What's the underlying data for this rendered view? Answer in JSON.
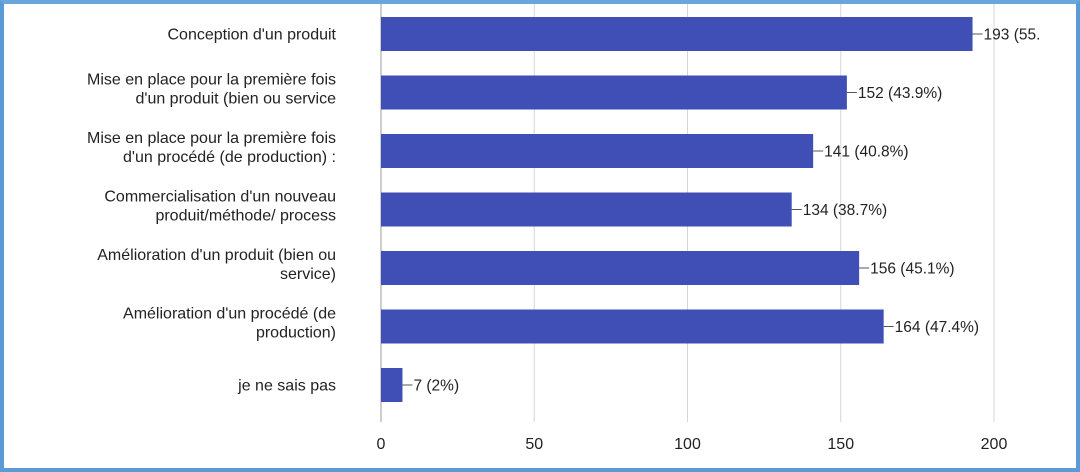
{
  "chart_data": {
    "type": "bar",
    "orientation": "horizontal",
    "title": "",
    "xlabel": "",
    "ylabel": "",
    "xlim": [
      0,
      200
    ],
    "xticks": [
      0,
      50,
      100,
      150,
      200
    ],
    "grid": true,
    "legend": "none",
    "bar_color": "#3f4fb5",
    "categories": [
      [
        "Conception d'un produit"
      ],
      [
        "Mise en place pour la première fois",
        "d'un produit (bien ou service"
      ],
      [
        "Mise en place pour la première fois",
        "d'un procédé (de production) :"
      ],
      [
        "Commercialisation d'un nouveau",
        "produit/méthode/ process"
      ],
      [
        "Amélioration d'un produit (bien ou",
        "service)"
      ],
      [
        "Amélioration d'un procédé (de",
        "production)"
      ],
      [
        "je ne sais pas"
      ]
    ],
    "values": [
      193,
      152,
      141,
      134,
      156,
      164,
      7
    ],
    "value_labels": [
      "193 (55.",
      "152 (43.9%)",
      "141 (40.8%)",
      "134 (38.7%)",
      "156 (45.1%)",
      "164 (47.4%)",
      "7 (2%)"
    ]
  }
}
